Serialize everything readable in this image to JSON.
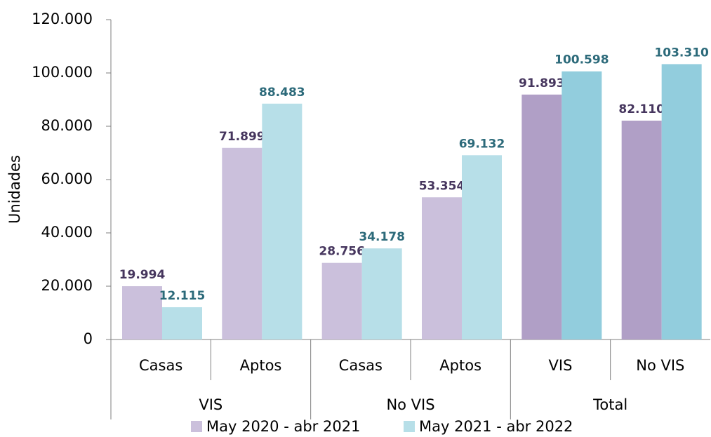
{
  "chart_data": {
    "type": "bar",
    "y_label": "Unidades",
    "groups": [
      {
        "name": "VIS",
        "categories": [
          "Casas",
          "Aptos"
        ]
      },
      {
        "name": "No VIS",
        "categories": [
          "Casas",
          "Aptos"
        ]
      },
      {
        "name": "Total",
        "categories": [
          "VIS",
          "No VIS"
        ]
      }
    ],
    "series": [
      {
        "name": "May 2020 - abr 2021",
        "color": "#cbc0dc",
        "label_color": "#46365e",
        "colors": [
          "#cbc0dc",
          "#cbc0dc",
          "#cbc0dc",
          "#cbc0dc",
          "#b09fc6",
          "#b09fc6"
        ],
        "values": [
          19994,
          71899,
          28756,
          53354,
          91893,
          82110
        ],
        "value_labels": [
          "19.994",
          "71.899",
          "28.756",
          "53.354",
          "91.893",
          "82.110"
        ]
      },
      {
        "name": "May 2021 - abr 2022",
        "color": "#b7dfe8",
        "label_color": "#2c6a7a",
        "colors": [
          "#b7dfe8",
          "#b7dfe8",
          "#b7dfe8",
          "#b7dfe8",
          "#92cddd",
          "#92cddd"
        ],
        "values": [
          12115,
          88483,
          34178,
          69132,
          100598,
          103310
        ],
        "value_labels": [
          "12.115",
          "88.483",
          "34.178",
          "69.132",
          "100.598",
          "103.310"
        ]
      }
    ],
    "ylim": [
      0,
      120000
    ],
    "yticks": [
      0,
      {
        "value": 20000,
        "label": "20.000"
      },
      {
        "value": 40000,
        "label": "40.000"
      },
      {
        "value": 60000,
        "label": "60.000"
      },
      {
        "value": 80000,
        "label": "80.000"
      },
      {
        "value": 100000,
        "label": "100.000"
      },
      {
        "value": 120000,
        "label": "120.000"
      }
    ]
  }
}
